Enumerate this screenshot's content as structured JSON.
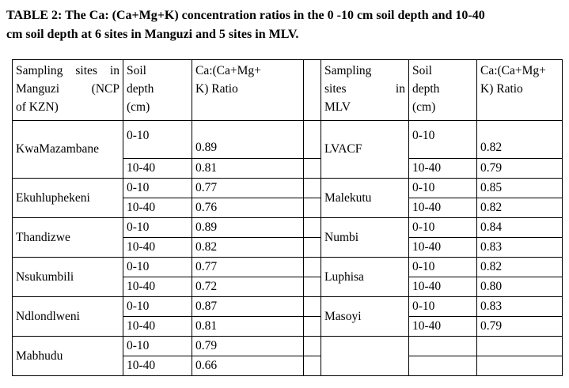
{
  "caption": {
    "line1": "TABLE 2: The Ca: (Ca+Mg+K) concentration ratios in the 0 -10 cm soil depth and 10-40",
    "line2": "cm soil depth at 6 sites in Manguzi and 5 sites in MLV."
  },
  "headers": {
    "left_site": [
      "Sampling sites in",
      "Manguzi (NCP",
      "of KZN)"
    ],
    "left_depth": [
      "Soil",
      "depth",
      "(cm)"
    ],
    "left_ratio": [
      "Ca:(Ca+Mg+",
      "K) Ratio"
    ],
    "right_site": [
      "Sampling",
      "sites in",
      "MLV"
    ],
    "right_depth": [
      "Soil",
      "depth",
      "(cm)"
    ],
    "right_ratio": [
      "Ca:(Ca+Mg+",
      "K) Ratio"
    ]
  },
  "left_sites": [
    {
      "site": "KwaMazambane",
      "rows": [
        {
          "depth": "0-10",
          "ratio": "0.89"
        },
        {
          "depth": "10-40",
          "ratio": "0.81"
        }
      ]
    },
    {
      "site": "Ekuhluphekeni",
      "rows": [
        {
          "depth": "0-10",
          "ratio": "0.77"
        },
        {
          "depth": "10-40",
          "ratio": "0.76"
        }
      ]
    },
    {
      "site": "Thandizwe",
      "rows": [
        {
          "depth": "0-10",
          "ratio": "0.89"
        },
        {
          "depth": "10-40",
          "ratio": "0.82"
        }
      ]
    },
    {
      "site": "Nsukumbili",
      "rows": [
        {
          "depth": "0-10",
          "ratio": "0.77"
        },
        {
          "depth": "10-40",
          "ratio": "0.72"
        }
      ]
    },
    {
      "site": "Ndlondlweni",
      "rows": [
        {
          "depth": "0-10",
          "ratio": "0.87"
        },
        {
          "depth": "10-40",
          "ratio": "0.81"
        }
      ]
    },
    {
      "site": "Mabhudu",
      "rows": [
        {
          "depth": "0-10",
          "ratio": "0.79"
        },
        {
          "depth": "10-40",
          "ratio": "0.66"
        }
      ]
    }
  ],
  "right_sites": [
    {
      "site": "LVACF",
      "rows": [
        {
          "depth": "0-10",
          "ratio": "0.82"
        },
        {
          "depth": "10-40",
          "ratio": "0.79"
        }
      ]
    },
    {
      "site": "Malekutu",
      "rows": [
        {
          "depth": "0-10",
          "ratio": "0.85"
        },
        {
          "depth": "10-40",
          "ratio": "0.82"
        }
      ]
    },
    {
      "site": "Numbi",
      "rows": [
        {
          "depth": "0-10",
          "ratio": "0.84"
        },
        {
          "depth": "10-40",
          "ratio": "0.83"
        }
      ]
    },
    {
      "site": "Luphisa",
      "rows": [
        {
          "depth": "0-10",
          "ratio": "0.82"
        },
        {
          "depth": "10-40",
          "ratio": "0.80"
        }
      ]
    },
    {
      "site": "Masoyi",
      "rows": [
        {
          "depth": "0-10",
          "ratio": "0.83"
        },
        {
          "depth": "10-40",
          "ratio": "0.79"
        }
      ]
    }
  ]
}
